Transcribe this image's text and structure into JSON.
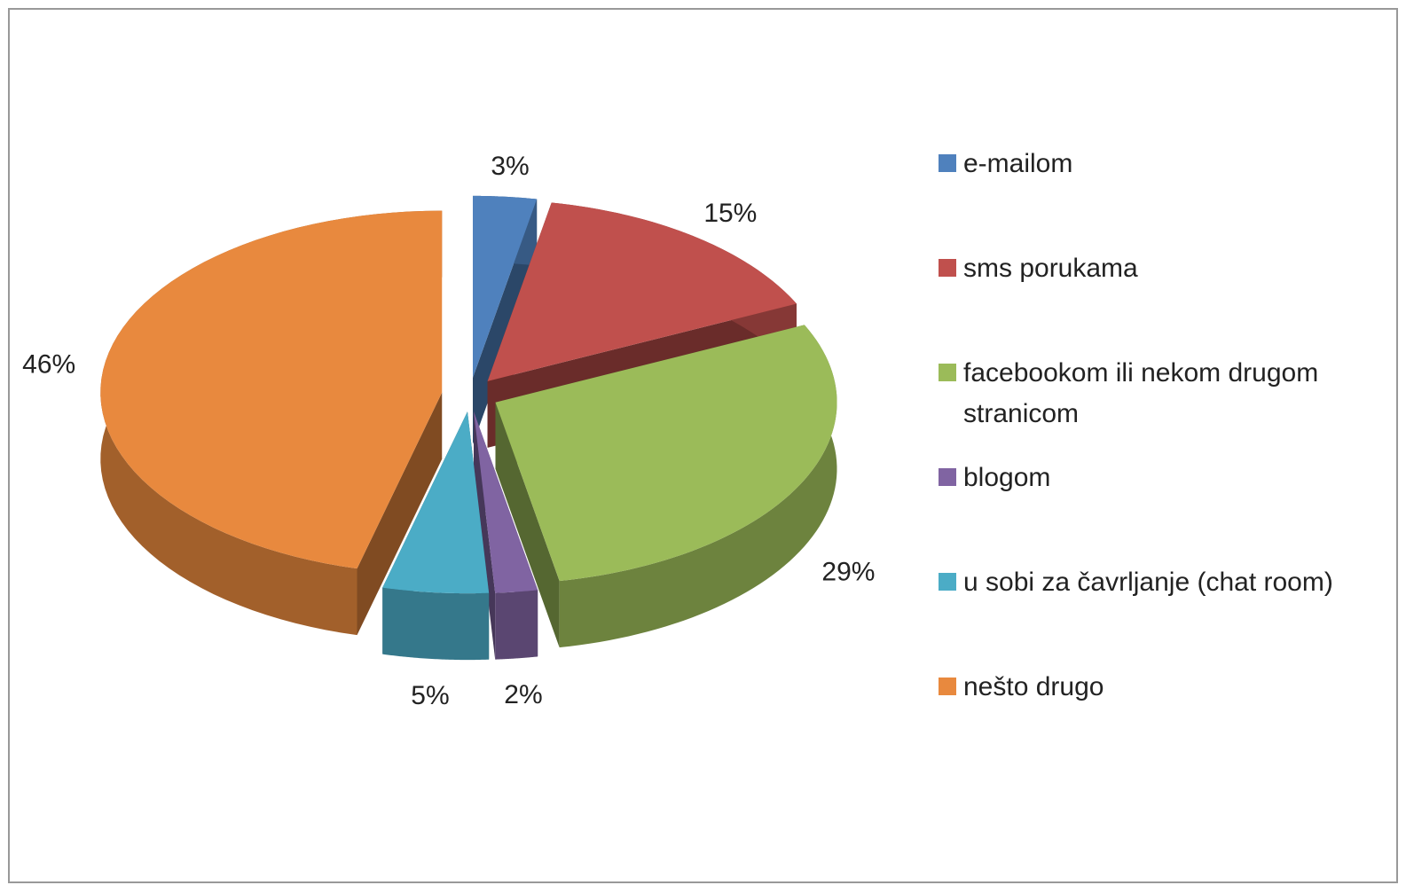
{
  "chart_data": {
    "type": "pie",
    "categories": [
      "e-mailom",
      "sms porukama",
      "facebookom ili nekom drugom stranicom",
      "blogom",
      "u sobi za čavrljanje (chat room)",
      "nešto drugo"
    ],
    "values": [
      3,
      15,
      29,
      2,
      5,
      46
    ],
    "value_labels": [
      "3%",
      "15%",
      "29%",
      "2%",
      "5%",
      "46%"
    ],
    "colors": [
      "#4f81bd",
      "#c0504d",
      "#9bbb59",
      "#8064a2",
      "#4bacc6",
      "#e8893e"
    ],
    "legend": "right"
  }
}
